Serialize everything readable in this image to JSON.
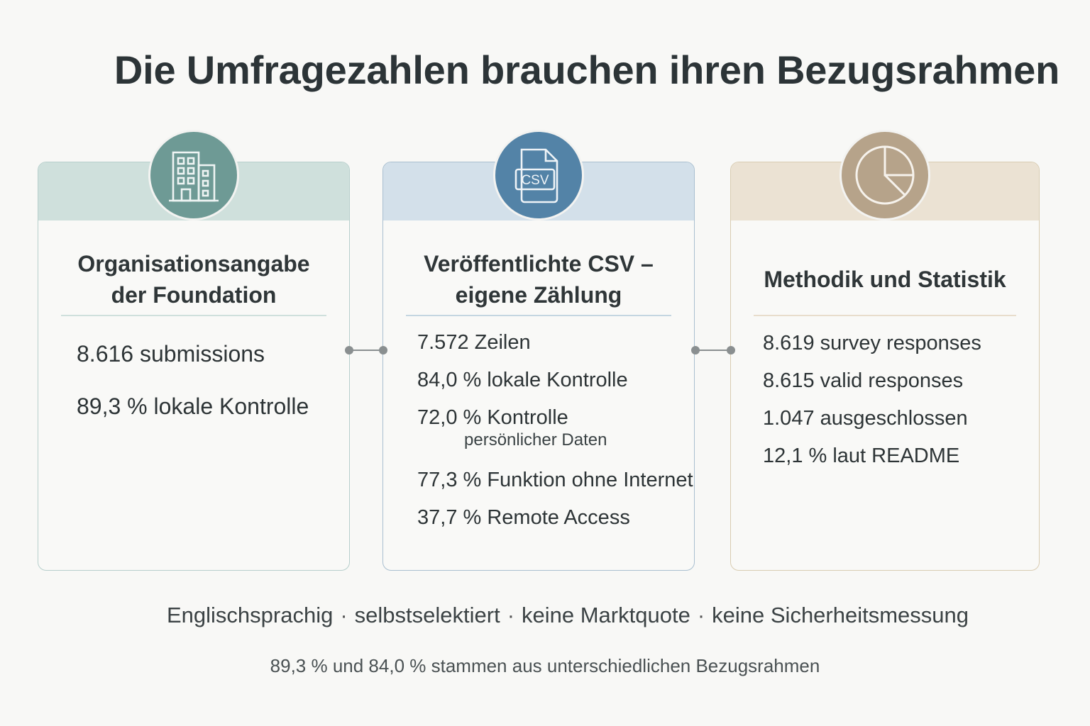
{
  "title": "Die Umfragezahlen brauchen ihren Bezugsrahmen",
  "colors": {
    "teal": "#6e9a95",
    "blue": "#5383a7",
    "tan": "#b6a38a"
  },
  "cards": [
    {
      "icon": "building-icon",
      "title_line1": "Organisationsangabe",
      "title_line2": "der Foundation",
      "items": [
        "8.616 submissions",
        "89,3 % lokale Kontrolle"
      ]
    },
    {
      "icon": "csv-file-icon",
      "icon_label": "CSV",
      "title_line1": "Veröffentlichte CSV –",
      "title_line2": "eigene Zählung",
      "items": [
        "7.572 Zeilen",
        "84,0 % lokale Kontrolle",
        "72,0 % Kontrolle",
        "77,3 % Funktion ohne Internet",
        "37,7 % Remote Access"
      ],
      "item_sub": "persönlicher Daten"
    },
    {
      "icon": "pie-chart-icon",
      "title_line1": "Methodik und Statistik",
      "items": [
        "8.619 survey responses",
        "8.615 valid responses",
        "1.047 ausgeschlossen",
        "12,1 % laut README"
      ]
    }
  ],
  "tags": [
    "Englischsprachig",
    "selbstselektiert",
    "keine Marktquote",
    "keine Sicherheitsmessung"
  ],
  "tag_separator": "·",
  "footnote": "89,3 % und 84,0 % stammen aus unterschiedlichen Bezugsrahmen"
}
